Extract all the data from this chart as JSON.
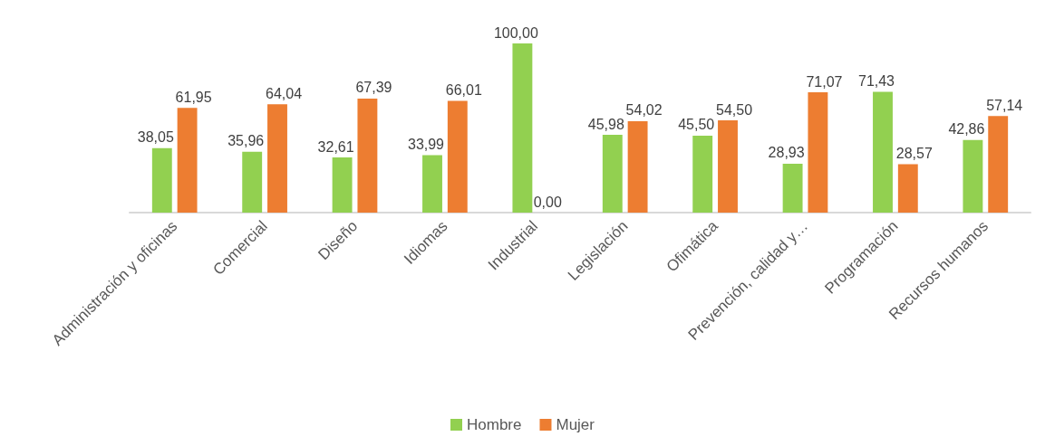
{
  "chart_data": {
    "type": "bar",
    "categories": [
      "Administración y oficinas",
      "Comercial",
      "Diseño",
      "Idiomas",
      "Industrial",
      "Legislación",
      "Ofimática",
      "Prevención, calidad y…",
      "Programación",
      "Recursos humanos"
    ],
    "series": [
      {
        "name": "Hombre",
        "color": "#92d050",
        "values": [
          38.05,
          35.96,
          32.61,
          33.99,
          100.0,
          45.98,
          45.5,
          28.93,
          71.43,
          42.86
        ],
        "value_labels": [
          "38,05",
          "35,96",
          "32,61",
          "33,99",
          "100,00",
          "45,98",
          "45,50",
          "28,93",
          "71,43",
          "42,86"
        ]
      },
      {
        "name": "Mujer",
        "color": "#ed7d31",
        "values": [
          61.95,
          64.04,
          67.39,
          66.01,
          0.0,
          54.02,
          54.5,
          71.07,
          28.57,
          57.14
        ],
        "value_labels": [
          "61,95",
          "64,04",
          "67,39",
          "66,01",
          "0,00",
          "54,02",
          "54,50",
          "71,07",
          "28,57",
          "57,14"
        ]
      }
    ],
    "legend": "bottom"
  }
}
